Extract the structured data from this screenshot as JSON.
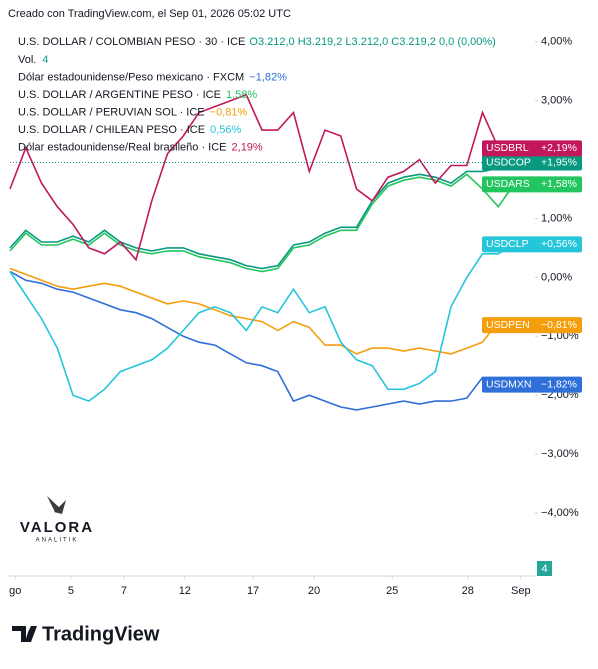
{
  "chart_data": {
    "type": "line",
    "caption": "Creado con TradingView.com, el Sep 01, 2026 05:02 UTC",
    "main_ohlc": "O3.212,0 H3.219,2 L3.212,0 C3.219,2 0,0 (0,00%)",
    "volume_label": "Vol.",
    "volume_value": "4",
    "volume_badge": "4",
    "watermark": "VALORA",
    "watermark_sub": "ANALITIK",
    "brand": "TradingView",
    "x": [
      0,
      3,
      6,
      9,
      12,
      15,
      18,
      21,
      24,
      27,
      30,
      33,
      36,
      39,
      42,
      45,
      48,
      51,
      54,
      57,
      60,
      63,
      66,
      69,
      72,
      75,
      78,
      81,
      84,
      87,
      90,
      93,
      96
    ],
    "xlim": [
      0,
      100
    ],
    "xticks": [
      {
        "value": 1,
        "label": "go"
      },
      {
        "value": 11.6,
        "label": "5"
      },
      {
        "value": 21.7,
        "label": "7"
      },
      {
        "value": 33.3,
        "label": "12"
      },
      {
        "value": 46.3,
        "label": "17"
      },
      {
        "value": 57.9,
        "label": "20"
      },
      {
        "value": 72.8,
        "label": "25"
      },
      {
        "value": 87.2,
        "label": "28"
      },
      {
        "value": 97.3,
        "label": "Sep"
      }
    ],
    "ylim": [
      -5.07,
      4.2
    ],
    "yticks": [
      {
        "value": 4,
        "label": "4,00%"
      },
      {
        "value": 3,
        "label": "3,00%"
      },
      {
        "value": 2,
        "label": "2,00%"
      },
      {
        "value": 1,
        "label": "1,00%"
      },
      {
        "value": 0,
        "label": "0,00%"
      },
      {
        "value": -1,
        "label": "−1,00%"
      },
      {
        "value": -2,
        "label": "−2,00%"
      },
      {
        "value": -3,
        "label": "−3,00%"
      },
      {
        "value": -4,
        "label": "−4,00%"
      }
    ],
    "grid": false,
    "series": [
      {
        "name": "U.S. DOLLAR / COLOMBIAN PESO · 30 · ICE",
        "symbol": "USDCOP",
        "tag_value": "+1,95%",
        "color": "#089981",
        "values": [
          0.5,
          0.8,
          0.6,
          0.6,
          0.7,
          0.6,
          0.8,
          0.6,
          0.5,
          0.45,
          0.5,
          0.5,
          0.4,
          0.35,
          0.3,
          0.2,
          0.15,
          0.2,
          0.55,
          0.6,
          0.75,
          0.85,
          0.85,
          1.3,
          1.6,
          1.7,
          1.75,
          1.7,
          1.6,
          1.8,
          1.8,
          1.85,
          1.95
        ]
      },
      {
        "name": "Dólar estadounidense/Peso mexicano · FXCM",
        "symbol": "USDMXN",
        "legend_value": "−1,82%",
        "tag_value": "−1,82%",
        "color": "#2f6fd8",
        "values": [
          0.1,
          -0.05,
          -0.1,
          -0.2,
          -0.25,
          -0.35,
          -0.45,
          -0.55,
          -0.6,
          -0.7,
          -0.85,
          -1.0,
          -1.1,
          -1.15,
          -1.3,
          -1.45,
          -1.5,
          -1.6,
          -2.1,
          -2.0,
          -2.1,
          -2.2,
          -2.25,
          -2.2,
          -2.15,
          -2.1,
          -2.15,
          -2.1,
          -2.1,
          -2.05,
          -1.7,
          -1.8,
          -1.82
        ]
      },
      {
        "name": "U.S. DOLLAR / ARGENTINE PESO · ICE",
        "symbol": "USDARS",
        "legend_value": "1,58%",
        "tag_value": "+1,58%",
        "color": "#22c55e",
        "values": [
          0.45,
          0.75,
          0.55,
          0.55,
          0.65,
          0.55,
          0.75,
          0.55,
          0.45,
          0.4,
          0.45,
          0.45,
          0.35,
          0.3,
          0.25,
          0.15,
          0.1,
          0.15,
          0.5,
          0.55,
          0.7,
          0.8,
          0.8,
          1.25,
          1.55,
          1.65,
          1.7,
          1.65,
          1.55,
          1.75,
          1.5,
          1.2,
          1.58
        ]
      },
      {
        "name": "U.S. DOLLAR / PERUVIAN SOL · ICE",
        "symbol": "USDPEN",
        "legend_value": "−0,81%",
        "tag_value": "−0,81%",
        "color": "#f59e0b",
        "values": [
          0.15,
          0.05,
          -0.05,
          -0.15,
          -0.2,
          -0.15,
          -0.1,
          -0.15,
          -0.25,
          -0.35,
          -0.45,
          -0.4,
          -0.45,
          -0.55,
          -0.65,
          -0.7,
          -0.75,
          -0.9,
          -0.75,
          -0.85,
          -1.15,
          -1.15,
          -1.3,
          -1.2,
          -1.2,
          -1.25,
          -1.2,
          -1.25,
          -1.3,
          -1.2,
          -1.1,
          -0.75,
          -0.81
        ]
      },
      {
        "name": "U.S. DOLLAR / CHILEAN PESO · ICE",
        "symbol": "USDCLP",
        "legend_value": "0,56%",
        "tag_value": "+0,56%",
        "color": "#26c6da",
        "values": [
          0.1,
          -0.3,
          -0.7,
          -1.2,
          -2.0,
          -2.1,
          -1.9,
          -1.6,
          -1.5,
          -1.4,
          -1.2,
          -0.9,
          -0.6,
          -0.5,
          -0.6,
          -0.9,
          -0.5,
          -0.6,
          -0.2,
          -0.6,
          -0.5,
          -1.1,
          -1.4,
          -1.5,
          -1.9,
          -1.9,
          -1.8,
          -1.6,
          -0.5,
          0.0,
          0.4,
          0.4,
          0.56
        ]
      },
      {
        "name": "Dólar estadounidense/Real brasileño · ICE",
        "symbol": "USDBRL",
        "legend_value": "2,19%",
        "tag_value": "+2,19%",
        "color": "#c2185b",
        "values": [
          1.5,
          2.2,
          1.6,
          1.2,
          0.9,
          0.5,
          0.4,
          0.6,
          0.3,
          1.3,
          2.1,
          2.4,
          2.8,
          2.9,
          3.0,
          3.1,
          2.5,
          2.5,
          2.8,
          1.8,
          2.5,
          2.4,
          1.5,
          1.3,
          1.7,
          1.8,
          2.0,
          1.6,
          1.9,
          1.9,
          2.8,
          2.2,
          2.19
        ]
      }
    ]
  }
}
